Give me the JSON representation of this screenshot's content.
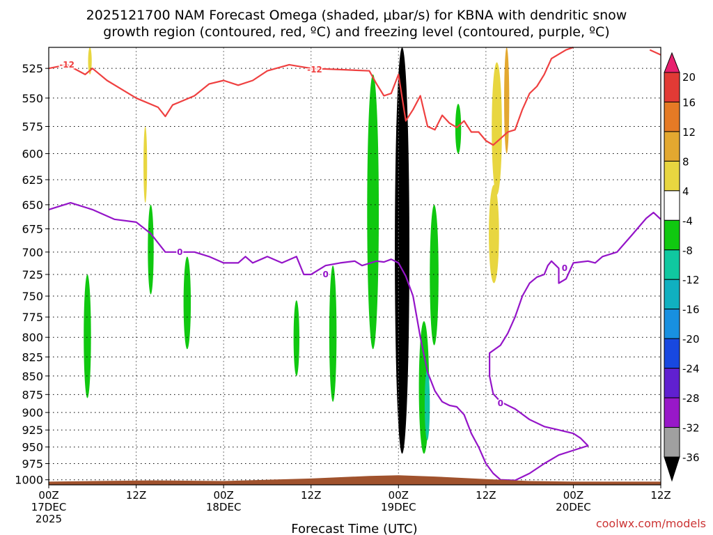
{
  "title_line1": "2025121700 NAM Forecast Omega (shaded, μbar/s) for KBNA with dendritic snow",
  "title_line2": "growth region (contoured, red, ºC) and freezing level (contoured, purple, ºC)",
  "credit": "coolwx.com/models",
  "chart_data": {
    "type": "heatmap",
    "xlabel": "Forecast Time (UTC)",
    "ylabel": "",
    "x_ticks": [
      {
        "hour": 0,
        "line1": "00Z",
        "line2": "17DEC",
        "line3": "2025"
      },
      {
        "hour": 12,
        "line1": "12Z",
        "line2": "",
        "line3": ""
      },
      {
        "hour": 24,
        "line1": "00Z",
        "line2": "18DEC",
        "line3": ""
      },
      {
        "hour": 36,
        "line1": "12Z",
        "line2": "",
        "line3": ""
      },
      {
        "hour": 48,
        "line1": "00Z",
        "line2": "19DEC",
        "line3": ""
      },
      {
        "hour": 60,
        "line1": "12Z",
        "line2": "",
        "line3": ""
      },
      {
        "hour": 72,
        "line1": "00Z",
        "line2": "20DEC",
        "line3": ""
      },
      {
        "hour": 84,
        "line1": "12Z",
        "line2": "",
        "line3": ""
      }
    ],
    "xlim": [
      0,
      84
    ],
    "y_ticks": [
      525,
      550,
      575,
      600,
      625,
      650,
      675,
      700,
      725,
      750,
      775,
      800,
      825,
      850,
      875,
      900,
      925,
      950,
      975,
      1000
    ],
    "ylim": [
      508,
      1008
    ],
    "y_scale": "log-pressure",
    "grid": true,
    "colorbar": {
      "labels": [
        "20",
        "16",
        "12",
        "8",
        "4",
        "-4",
        "-8",
        "-12",
        "-16",
        "-20",
        "-24",
        "-28",
        "-32",
        "-36"
      ],
      "colors": [
        "#e8206e",
        "#e23a35",
        "#e57a25",
        "#e3a830",
        "#e8d640",
        "#ffffff",
        "#10c810",
        "#10c8a0",
        "#10b0c0",
        "#1890e0",
        "#1848e0",
        "#6020d0",
        "#9818c8",
        "#a0a0a0",
        "#000000"
      ]
    },
    "dendritic_contour": {
      "label": "-12",
      "color": "#ef4040",
      "points": [
        [
          0,
          525
        ],
        [
          2.5,
          522
        ],
        [
          5,
          530
        ],
        [
          6,
          525
        ],
        [
          8,
          535
        ],
        [
          12,
          550
        ],
        [
          15,
          558
        ],
        [
          16,
          566
        ],
        [
          17,
          556
        ],
        [
          20,
          548
        ],
        [
          22,
          538
        ],
        [
          24,
          535
        ],
        [
          26,
          539
        ],
        [
          28,
          535
        ],
        [
          30,
          527
        ],
        [
          33,
          522
        ],
        [
          36,
          525
        ],
        [
          40,
          526
        ],
        [
          44,
          527
        ],
        [
          45,
          538
        ],
        [
          46,
          548
        ],
        [
          47,
          546
        ],
        [
          48,
          530
        ],
        [
          49,
          570
        ],
        [
          50,
          560
        ],
        [
          51,
          548
        ],
        [
          52,
          575
        ],
        [
          53,
          578
        ],
        [
          54,
          565
        ],
        [
          55,
          572
        ],
        [
          56,
          576
        ],
        [
          57,
          570
        ],
        [
          58,
          580
        ],
        [
          59,
          580
        ],
        [
          60,
          588
        ],
        [
          61,
          592
        ],
        [
          62,
          586
        ],
        [
          63,
          580
        ],
        [
          64,
          578
        ],
        [
          65,
          560
        ],
        [
          66,
          546
        ],
        [
          67,
          540
        ],
        [
          68,
          530
        ],
        [
          69,
          517
        ],
        [
          71,
          510
        ],
        [
          72,
          508
        ]
      ]
    },
    "dendritic_contour_2": {
      "label": "",
      "color": "#ef4040",
      "points": [
        [
          82.5,
          510
        ],
        [
          84,
          514
        ]
      ]
    },
    "freezing_contour": {
      "label": "0",
      "color": "#9414c8",
      "points": [
        [
          0,
          655
        ],
        [
          3,
          648
        ],
        [
          6,
          655
        ],
        [
          9,
          665
        ],
        [
          12,
          668
        ],
        [
          14,
          680
        ],
        [
          16,
          700
        ],
        [
          18,
          700
        ],
        [
          20,
          700
        ],
        [
          22,
          705
        ],
        [
          24,
          712
        ],
        [
          26,
          712
        ],
        [
          27,
          705
        ],
        [
          28,
          712
        ],
        [
          30,
          705
        ],
        [
          32,
          712
        ],
        [
          34,
          705
        ],
        [
          35,
          725
        ],
        [
          36,
          725
        ],
        [
          38,
          715
        ],
        [
          40,
          712
        ],
        [
          42,
          710
        ],
        [
          43,
          715
        ],
        [
          45,
          710
        ],
        [
          46,
          711
        ],
        [
          47,
          708
        ],
        [
          48,
          712
        ],
        [
          49,
          727
        ],
        [
          50,
          750
        ],
        [
          51,
          800
        ],
        [
          52,
          845
        ],
        [
          53,
          870
        ],
        [
          54,
          885
        ],
        [
          55,
          890
        ],
        [
          56,
          892
        ],
        [
          57,
          903
        ],
        [
          58,
          930
        ],
        [
          59,
          950
        ],
        [
          60,
          975
        ],
        [
          61,
          990
        ],
        [
          62,
          1000
        ],
        [
          64,
          1001
        ],
        [
          66,
          990
        ],
        [
          68,
          975
        ],
        [
          70,
          962
        ],
        [
          72,
          955
        ],
        [
          74,
          948
        ],
        [
          73,
          937
        ],
        [
          72,
          930
        ],
        [
          70,
          925
        ],
        [
          68,
          920
        ],
        [
          66,
          910
        ],
        [
          64,
          895
        ],
        [
          62,
          885
        ],
        [
          61,
          874
        ],
        [
          60.5,
          850
        ],
        [
          60.5,
          820
        ],
        [
          62,
          810
        ],
        [
          63,
          795
        ],
        [
          64,
          775
        ],
        [
          65,
          750
        ],
        [
          66,
          735
        ],
        [
          67,
          728
        ],
        [
          68,
          725
        ],
        [
          68.5,
          715
        ],
        [
          69,
          710
        ],
        [
          70,
          718
        ],
        [
          70,
          735
        ],
        [
          71,
          730
        ],
        [
          72,
          712
        ],
        [
          74,
          710
        ],
        [
          75,
          712
        ],
        [
          76,
          705
        ],
        [
          78,
          700
        ],
        [
          80,
          682
        ],
        [
          82,
          664
        ],
        [
          83,
          658
        ],
        [
          84,
          665
        ]
      ]
    },
    "omega_features": [
      {
        "value": -6,
        "x": [
          4.8,
          5.8
        ],
        "y": [
          725,
          880
        ]
      },
      {
        "value": -6,
        "x": [
          13.6,
          14.4
        ],
        "y": [
          650,
          748
        ]
      },
      {
        "value": -6,
        "x": [
          18.5,
          19.5
        ],
        "y": [
          705,
          815
        ]
      },
      {
        "value": -6,
        "x": [
          33.6,
          34.4
        ],
        "y": [
          755,
          850
        ]
      },
      {
        "value": -6,
        "x": [
          38.5,
          39.5
        ],
        "y": [
          715,
          885
        ]
      },
      {
        "value": -6,
        "x": [
          43.7,
          45.3
        ],
        "y": [
          530,
          815
        ]
      },
      {
        "value": -6,
        "x": [
          50.8,
          52.2
        ],
        "y": [
          780,
          960
        ]
      },
      {
        "value": -6,
        "x": [
          52.3,
          53.5
        ],
        "y": [
          650,
          810
        ]
      },
      {
        "value": -6,
        "x": [
          55.8,
          56.6
        ],
        "y": [
          555,
          600
        ]
      },
      {
        "value": -10,
        "x": [
          51.6,
          52.3
        ],
        "y": [
          840,
          940
        ]
      },
      {
        "value": 6,
        "x": [
          60.8,
          62.2
        ],
        "y": [
          520,
          640
        ]
      },
      {
        "value": 6,
        "x": [
          60.4,
          61.8
        ],
        "y": [
          630,
          735
        ]
      },
      {
        "value": 10,
        "x": [
          62.5,
          63.2
        ],
        "y": [
          508,
          600
        ]
      },
      {
        "value": 6,
        "x": [
          13,
          13.5
        ],
        "y": [
          575,
          648
        ]
      },
      {
        "value": 6,
        "x": [
          5.4,
          5.9
        ],
        "y": [
          508,
          530
        ]
      },
      {
        "value": -36,
        "x": [
          47.5,
          49.5
        ],
        "y": [
          508,
          960
        ]
      }
    ]
  }
}
